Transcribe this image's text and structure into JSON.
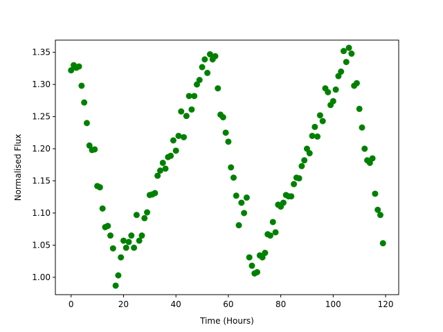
{
  "chart_data": {
    "type": "scatter",
    "title": "",
    "xlabel": "Time (Hours)",
    "ylabel": "Normalised Flux",
    "xlim": [
      -6,
      125
    ],
    "ylim": [
      0.973,
      1.369
    ],
    "xticks": [
      0,
      20,
      40,
      60,
      80,
      100,
      120
    ],
    "yticks": [
      1.0,
      1.05,
      1.1,
      1.15,
      1.2,
      1.25,
      1.3,
      1.35
    ],
    "xtick_labels": [
      "0",
      "20",
      "40",
      "60",
      "80",
      "100",
      "120"
    ],
    "ytick_labels": [
      "1.00",
      "1.05",
      "1.10",
      "1.15",
      "1.20",
      "1.25",
      "1.30",
      "1.35"
    ],
    "grid": false,
    "marker_color": "#008000",
    "series": [
      {
        "name": "",
        "x": [
          0,
          1,
          2,
          3,
          4,
          5,
          6,
          7,
          8,
          9,
          10,
          11,
          12,
          13,
          14,
          15,
          16,
          17,
          18,
          19,
          20,
          21,
          22,
          23,
          24,
          25,
          26,
          27,
          28,
          29,
          30,
          31,
          32,
          33,
          34,
          35,
          36,
          37,
          38,
          39,
          40,
          41,
          42,
          43,
          44,
          45,
          46,
          47,
          48,
          49,
          50,
          51,
          52,
          53,
          54,
          55,
          56,
          57,
          58,
          59,
          60,
          61,
          62,
          63,
          64,
          65,
          66,
          67,
          68,
          69,
          70,
          71,
          72,
          73,
          74,
          75,
          76,
          77,
          78,
          79,
          80,
          81,
          82,
          83,
          84,
          85,
          86,
          87,
          88,
          89,
          90,
          91,
          92,
          93,
          94,
          95,
          96,
          97,
          98,
          99,
          100,
          101,
          102,
          103,
          104,
          105,
          106,
          107,
          108,
          109,
          110,
          111,
          112,
          113,
          114,
          115,
          116,
          117,
          118,
          119
        ],
        "y": [
          1.322,
          1.33,
          1.326,
          1.328,
          1.298,
          1.272,
          1.24,
          1.205,
          1.198,
          1.199,
          1.142,
          1.14,
          1.107,
          1.078,
          1.08,
          1.065,
          1.045,
          0.987,
          1.003,
          1.031,
          1.057,
          1.046,
          1.055,
          1.065,
          1.046,
          1.097,
          1.057,
          1.065,
          1.092,
          1.101,
          1.128,
          1.129,
          1.131,
          1.158,
          1.166,
          1.178,
          1.169,
          1.187,
          1.189,
          1.213,
          1.197,
          1.22,
          1.258,
          1.218,
          1.251,
          1.282,
          1.261,
          1.282,
          1.3,
          1.307,
          1.327,
          1.339,
          1.318,
          1.347,
          1.339,
          1.344,
          1.294,
          1.253,
          1.249,
          1.225,
          1.211,
          1.171,
          1.155,
          1.127,
          1.081,
          1.116,
          1.1,
          1.124,
          1.031,
          1.018,
          1.006,
          1.008,
          1.034,
          1.031,
          1.038,
          1.067,
          1.065,
          1.086,
          1.07,
          1.113,
          1.11,
          1.116,
          1.128,
          1.126,
          1.126,
          1.145,
          1.155,
          1.154,
          1.173,
          1.182,
          1.2,
          1.193,
          1.22,
          1.234,
          1.219,
          1.252,
          1.243,
          1.294,
          1.288,
          1.268,
          1.274,
          1.292,
          1.313,
          1.32,
          1.352,
          1.335,
          1.357,
          1.348,
          1.298,
          1.302,
          1.262,
          1.233,
          1.2,
          1.182,
          1.178,
          1.185,
          1.13,
          1.105,
          1.097,
          1.053
        ]
      }
    ]
  }
}
